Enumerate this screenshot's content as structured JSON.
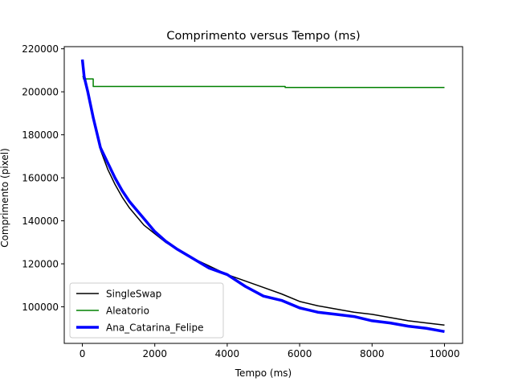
{
  "chart_data": {
    "type": "line",
    "title": "Comprimento versus Tempo (ms)",
    "xlabel": "Tempo (ms)",
    "ylabel": "Comprimento (pixel)",
    "xlim": [
      -500,
      10500
    ],
    "ylim": [
      83000,
      221000
    ],
    "xticks": [
      0,
      2000,
      4000,
      6000,
      8000,
      10000
    ],
    "yticks": [
      100000,
      120000,
      140000,
      160000,
      180000,
      200000,
      220000
    ],
    "grid": false,
    "legend": "lower-left",
    "series": [
      {
        "name": "SingleSwap",
        "color": "#000000",
        "width": 1.5,
        "x": [
          0,
          50,
          150,
          300,
          500,
          700,
          900,
          1100,
          1300,
          1500,
          1700,
          2000,
          2300,
          2600,
          3000,
          3500,
          4000,
          4500,
          5000,
          5500,
          6000,
          6500,
          7000,
          7500,
          8000,
          8500,
          9000,
          9500,
          10000
        ],
        "y": [
          215000,
          206000,
          200000,
          188000,
          173000,
          164000,
          157000,
          151000,
          146000,
          142000,
          138000,
          134000,
          130000,
          127000,
          123000,
          119000,
          115000,
          112000,
          109000,
          106000,
          102500,
          100500,
          99000,
          97500,
          96500,
          95000,
          93500,
          92500,
          91500
        ]
      },
      {
        "name": "Aleatorio",
        "color": "#008000",
        "width": 1.5,
        "x": [
          0,
          30,
          30,
          300,
          300,
          5600,
          5600,
          10000
        ],
        "y": [
          207000,
          207000,
          206000,
          206000,
          202500,
          202500,
          202000,
          202000
        ]
      },
      {
        "name": "Ana_Catarina_Felipe",
        "color": "#0000ff",
        "width": 3.5,
        "x": [
          0,
          50,
          150,
          300,
          500,
          700,
          900,
          1100,
          1300,
          1500,
          1700,
          2000,
          2300,
          2600,
          3000,
          3500,
          4000,
          4500,
          5000,
          5500,
          6000,
          6500,
          7000,
          7500,
          8000,
          8500,
          9000,
          9500,
          10000
        ],
        "y": [
          215000,
          207000,
          200000,
          188000,
          174000,
          167000,
          160000,
          154000,
          149000,
          145000,
          141000,
          135000,
          130500,
          127000,
          123000,
          118000,
          115000,
          109500,
          105000,
          103000,
          99500,
          97500,
          96500,
          95500,
          93500,
          92500,
          91000,
          90000,
          88500
        ]
      }
    ]
  }
}
